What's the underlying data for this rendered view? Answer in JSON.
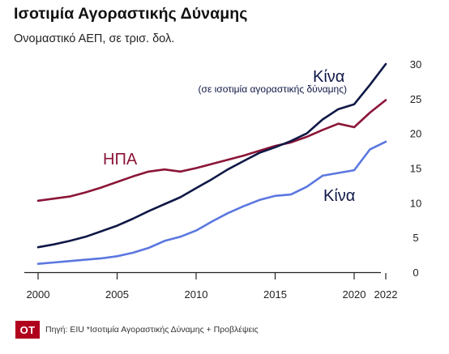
{
  "header": {
    "title": "Ισοτιμία Αγοραστικής Δύναμης",
    "subtitle": "Ονομαστικό ΑΕΠ, σε τρισ. δολ."
  },
  "footer": {
    "logo_text": "ΟΤ",
    "source": "Πηγή: EIU  *Ισοτιμία Αγοραστικής Δύναμης  + Προβλέψεις"
  },
  "chart_data": {
    "type": "line",
    "xlim": [
      2000,
      2022
    ],
    "ylim": [
      0,
      30
    ],
    "x_ticks": [
      2000,
      2005,
      2010,
      2015,
      2020,
      2022
    ],
    "y_ticks": [
      0,
      5,
      10,
      15,
      20,
      25,
      30
    ],
    "grid": false,
    "colors": {
      "usa": "#8b1538",
      "china_ppp": "#0f1846",
      "china_nominal": "#5b77e0"
    },
    "series": [
      {
        "name": "ΗΠΑ",
        "key": "usa",
        "x": [
          2000,
          2001,
          2002,
          2003,
          2004,
          2005,
          2006,
          2007,
          2008,
          2009,
          2010,
          2011,
          2012,
          2013,
          2014,
          2015,
          2016,
          2017,
          2018,
          2019,
          2020,
          2021,
          2022
        ],
        "values": [
          10.3,
          10.6,
          10.9,
          11.5,
          12.2,
          13.0,
          13.8,
          14.5,
          14.8,
          14.5,
          15.0,
          15.6,
          16.2,
          16.8,
          17.5,
          18.2,
          18.7,
          19.5,
          20.5,
          21.4,
          20.9,
          23.0,
          24.8
        ]
      },
      {
        "name": "Κίνα",
        "label_note": "(σε ισοτιμία αγοραστικής δύναμης)",
        "key": "china_ppp",
        "x": [
          2000,
          2001,
          2002,
          2003,
          2004,
          2005,
          2006,
          2007,
          2008,
          2009,
          2010,
          2011,
          2012,
          2013,
          2014,
          2015,
          2016,
          2017,
          2018,
          2019,
          2020,
          2021,
          2022
        ],
        "values": [
          3.6,
          4.0,
          4.5,
          5.1,
          5.9,
          6.7,
          7.7,
          8.8,
          9.8,
          10.8,
          12.1,
          13.4,
          14.8,
          16.0,
          17.2,
          18.0,
          18.9,
          20.0,
          22.0,
          23.5,
          24.2,
          27.0,
          30.0
        ]
      },
      {
        "name": "Κίνα",
        "key": "china_nominal",
        "x": [
          2000,
          2001,
          2002,
          2003,
          2004,
          2005,
          2006,
          2007,
          2008,
          2009,
          2010,
          2011,
          2012,
          2013,
          2014,
          2015,
          2016,
          2017,
          2018,
          2019,
          2020,
          2021,
          2022
        ],
        "values": [
          1.2,
          1.4,
          1.6,
          1.8,
          2.0,
          2.3,
          2.8,
          3.5,
          4.5,
          5.1,
          6.0,
          7.3,
          8.5,
          9.5,
          10.4,
          11.0,
          11.2,
          12.3,
          13.9,
          14.3,
          14.7,
          17.7,
          18.8
        ]
      }
    ]
  }
}
